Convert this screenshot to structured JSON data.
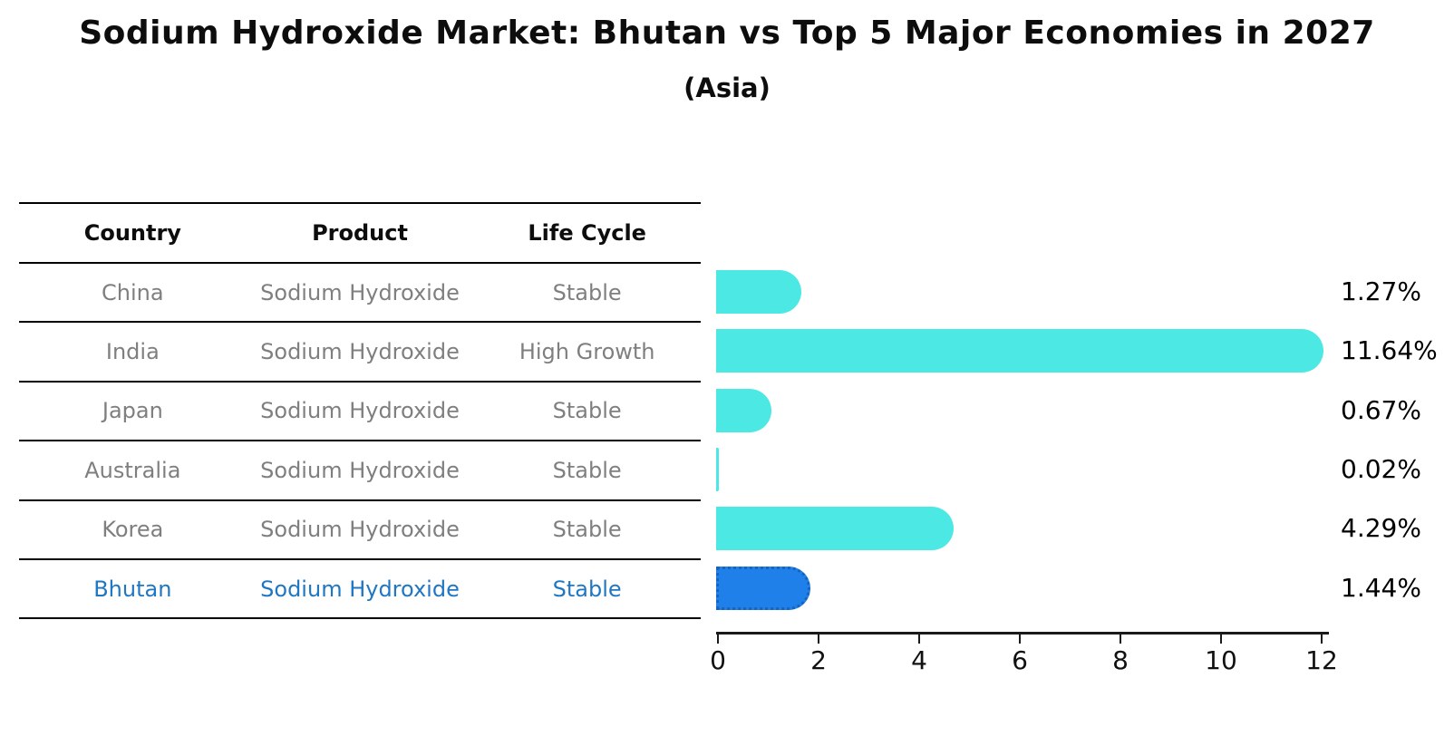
{
  "title": "Sodium Hydroxide Market: Bhutan vs Top 5 Major Economies in 2027",
  "subtitle": "(Asia)",
  "table": {
    "headers": [
      "Country",
      "Product",
      "Life Cycle"
    ],
    "rows": [
      {
        "country": "China",
        "product": "Sodium Hydroxide",
        "life_cycle": "Stable",
        "highlight": false
      },
      {
        "country": "India",
        "product": "Sodium Hydroxide",
        "life_cycle": "High Growth",
        "highlight": false
      },
      {
        "country": "Japan",
        "product": "Sodium Hydroxide",
        "life_cycle": "Stable",
        "highlight": false
      },
      {
        "country": "Australia",
        "product": "Sodium Hydroxide",
        "life_cycle": "Stable",
        "highlight": false
      },
      {
        "country": "Korea",
        "product": "Sodium Hydroxide",
        "life_cycle": "Stable",
        "highlight": true
      },
      {
        "country": "Bhutan",
        "product": "Sodium Hydroxide",
        "life_cycle": "Stable",
        "highlight": true
      }
    ]
  },
  "chart_data": {
    "type": "bar",
    "orientation": "horizontal",
    "categories": [
      "China",
      "India",
      "Japan",
      "Australia",
      "Korea",
      "Bhutan"
    ],
    "values": [
      1.27,
      11.64,
      0.67,
      0.02,
      4.29,
      1.44
    ],
    "value_labels": [
      "1.27%",
      "11.64%",
      "0.67%",
      "0.02%",
      "4.29%",
      "1.44%"
    ],
    "highlight_category": "Bhutan",
    "xlim": [
      0,
      12
    ],
    "xticks": [
      0,
      2,
      4,
      6,
      8,
      10,
      12
    ],
    "grid": false,
    "legend": false,
    "bar_color": "#4be8e4",
    "highlight_bar_color": "#1e80e8",
    "highlight_bar_edge_color": "#1663c0",
    "highlight_text_color": "#1f77c4",
    "table_text_color": "#7f7f7f"
  }
}
